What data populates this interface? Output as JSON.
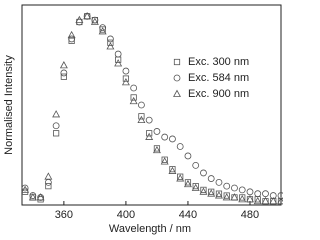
{
  "chart_data": {
    "type": "scatter",
    "xlabel": "Wavelength / nm",
    "ylabel": "Normalised Intensity",
    "xlim": [
      333,
      500
    ],
    "xticks": [
      360,
      400,
      440,
      480
    ],
    "ylim": [
      0,
      1.06
    ],
    "legend": "upper right",
    "x": [
      335,
      340,
      345,
      350,
      355,
      360,
      365,
      370,
      375,
      380,
      385,
      390,
      395,
      400,
      405,
      410,
      415,
      420,
      425,
      430,
      435,
      440,
      445,
      450,
      455,
      460,
      465,
      470,
      475,
      480,
      485,
      490,
      495,
      500
    ],
    "series": [
      {
        "name": "Exc. 300 nm",
        "marker": "square",
        "color": "#555555",
        "values": [
          0.07,
          0.04,
          0.03,
          0.1,
          0.38,
          0.68,
          0.87,
          0.97,
          1.0,
          0.98,
          0.93,
          0.86,
          0.77,
          0.67,
          0.57,
          0.47,
          0.38,
          0.3,
          0.24,
          0.19,
          0.15,
          0.12,
          0.1,
          0.08,
          0.07,
          0.06,
          0.05,
          0.04,
          0.04,
          0.03,
          0.03,
          0.02,
          0.02,
          0.02
        ]
      },
      {
        "name": "Exc. 584 nm",
        "marker": "circle",
        "color": "#555555",
        "values": [
          0.09,
          0.05,
          0.04,
          0.12,
          0.42,
          0.7,
          0.88,
          0.97,
          1.0,
          0.98,
          0.94,
          0.88,
          0.8,
          0.71,
          0.62,
          0.53,
          0.45,
          0.39,
          0.36,
          0.35,
          0.31,
          0.26,
          0.21,
          0.17,
          0.14,
          0.12,
          0.1,
          0.09,
          0.08,
          0.07,
          0.06,
          0.06,
          0.05,
          0.05
        ]
      },
      {
        "name": "Exc. 900 nm",
        "marker": "triangle",
        "color": "#555555",
        "values": [
          0.08,
          0.04,
          0.04,
          0.15,
          0.48,
          0.74,
          0.9,
          0.98,
          1.0,
          0.97,
          0.92,
          0.84,
          0.75,
          0.65,
          0.55,
          0.45,
          0.36,
          0.29,
          0.23,
          0.18,
          0.14,
          0.11,
          0.09,
          0.07,
          0.06,
          0.05,
          0.04,
          0.04,
          0.03,
          0.03,
          0.02,
          0.02,
          0.02,
          0.02
        ]
      }
    ]
  }
}
